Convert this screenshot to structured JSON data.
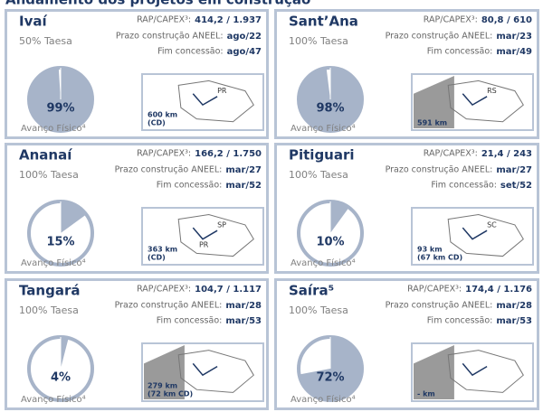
{
  "title": "Andamento dos projetos em construção",
  "cards": [
    {
      "name": "Ivaí",
      "stake": "50% Taesa",
      "rap_label": "RAP/CAPEX³:",
      "rap": "414,2 / 1.937",
      "prazo_label": "Prazo construção ANEEL:",
      "prazo": "ago/22",
      "fim_label": "Fim concessão:",
      "fim": "ago/47",
      "progress": 99,
      "progress_label": "99%",
      "progress_caption": "Avanço Físico⁴",
      "km": [
        "600 km",
        "(CD)"
      ],
      "map_labels": [
        "PR"
      ]
    },
    {
      "name": "Sant’Ana",
      "stake": "100% Taesa",
      "rap_label": "RAP/CAPEX³:",
      "rap": "80,8 / 610",
      "prazo_label": "Prazo construção ANEEL:",
      "prazo": "mar/23",
      "fim_label": "Fim concessão:",
      "fim": "mar/49",
      "progress": 98,
      "progress_label": "98%",
      "progress_caption": "Avanço Físico⁴",
      "km": [
        "591 km"
      ],
      "map_labels": [
        "RS"
      ]
    },
    {
      "name": "Ananaí",
      "stake": "100% Taesa",
      "rap_label": "RAP/CAPEX³:",
      "rap": "166,2 / 1.750",
      "prazo_label": "Prazo construção ANEEL:",
      "prazo": "mar/27",
      "fim_label": "Fim concessão:",
      "fim": "mar/52",
      "progress": 15,
      "progress_label": "15%",
      "progress_caption": "Avanço Físico⁴",
      "km": [
        "363 km",
        "(CD)"
      ],
      "map_labels": [
        "SP",
        "PR"
      ]
    },
    {
      "name": "Pitiguari",
      "stake": "100% Taesa",
      "rap_label": "RAP/CAPEX³:",
      "rap": "21,4 / 243",
      "prazo_label": "Prazo construção ANEEL:",
      "prazo": "mar/27",
      "fim_label": "Fim concessão:",
      "fim": "set/52",
      "progress": 10,
      "progress_label": "10%",
      "progress_caption": "Avanço Físico⁴",
      "km": [
        "93 km",
        "(67 km CD)"
      ],
      "map_labels": [
        "SC"
      ]
    },
    {
      "name": "Tangará",
      "stake": "100% Taesa",
      "rap_label": "RAP/CAPEX³:",
      "rap": "104,7 / 1.117",
      "prazo_label": "Prazo construção ANEEL:",
      "prazo": "mar/28",
      "fim_label": "Fim concessão:",
      "fim": "mar/53",
      "progress": 4,
      "progress_label": "4%",
      "progress_caption": "Avanço Físico⁴",
      "km": [
        "279 km",
        "(72 km CD)"
      ],
      "map_labels": []
    },
    {
      "name": "Saíra⁵",
      "stake": "100% Taesa",
      "rap_label": "RAP/CAPEX³:",
      "rap": "174,4 / 1.176",
      "prazo_label": "Prazo construção ANEEL:",
      "prazo": "mar/28",
      "fim_label": "Fim concessão:",
      "fim": "mar/53",
      "progress": 72,
      "progress_label": "72%",
      "progress_caption": "Avanço Físico⁴",
      "km": [
        "- km"
      ],
      "map_labels": []
    }
  ]
}
